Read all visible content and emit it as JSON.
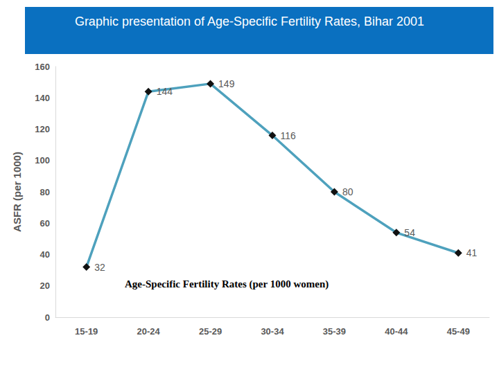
{
  "chart_data": {
    "type": "line",
    "title": "Graphic presentation of Age-Specific Fertility Rates, Bihar 2001",
    "y_label": "ASFR (per 1000)",
    "categories": [
      "15-19",
      "20-24",
      "25-29",
      "30-34",
      "35-39",
      "40-44",
      "45-49"
    ],
    "series": [
      {
        "name": "Age-Specific Fertility Rates (per 1000 women)",
        "color": "#4ea1bd",
        "values": [
          32,
          144,
          149,
          116,
          80,
          54,
          41
        ]
      }
    ],
    "ylim": [
      0,
      160
    ],
    "yticks": [
      0,
      20,
      40,
      60,
      80,
      100,
      120,
      140,
      160
    ],
    "grid": false,
    "legend": "bottom",
    "data_labels": true,
    "marker": "diamond"
  }
}
